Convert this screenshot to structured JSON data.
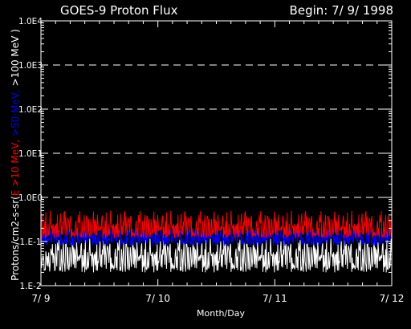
{
  "chart_data": {
    "type": "line",
    "title": "GOES-9 Proton Flux",
    "begin_label": "Begin: 7/ 9/ 1998",
    "xlabel": "Month/Day",
    "ylabel_parts": [
      {
        "text": "Protons/cm2-s-sr(",
        "color": "#ffffff"
      },
      {
        "text": "E >10 MeV, ",
        "color": "#ff0000"
      },
      {
        "text": ">50 MeV, ",
        "color": "#0000ff"
      },
      {
        "text": ">100 MeV )",
        "color": "#ffffff"
      }
    ],
    "x_ticks": [
      "7/ 9",
      "7/ 10",
      "7/ 11",
      "7/ 12"
    ],
    "xlim_days": [
      0,
      3
    ],
    "y_scale": "log",
    "ylim": [
      0.01,
      10000
    ],
    "y_ticks": [
      {
        "value": 0.01,
        "label": "1.E-2"
      },
      {
        "value": 0.1,
        "label": "1.E-1"
      },
      {
        "value": 1,
        "label": "1.0E0"
      },
      {
        "value": 10,
        "label": "1.0E1"
      },
      {
        "value": 100,
        "label": "1.0E2"
      },
      {
        "value": 1000,
        "label": "1.0E3"
      },
      {
        "value": 10000,
        "label": "1.0E4"
      }
    ],
    "grid": "dashed horizontal at decades",
    "series": [
      {
        "name": ">10 MeV",
        "color": "#ff0000",
        "typical": 0.2,
        "range": [
          0.12,
          0.5
        ]
      },
      {
        "name": ">50 MeV",
        "color": "#0000ff",
        "typical": 0.13,
        "range": [
          0.08,
          0.2
        ]
      },
      {
        "name": ">100 MeV",
        "color": "#ffffff",
        "typical": 0.045,
        "range": [
          0.02,
          0.12
        ]
      }
    ]
  }
}
